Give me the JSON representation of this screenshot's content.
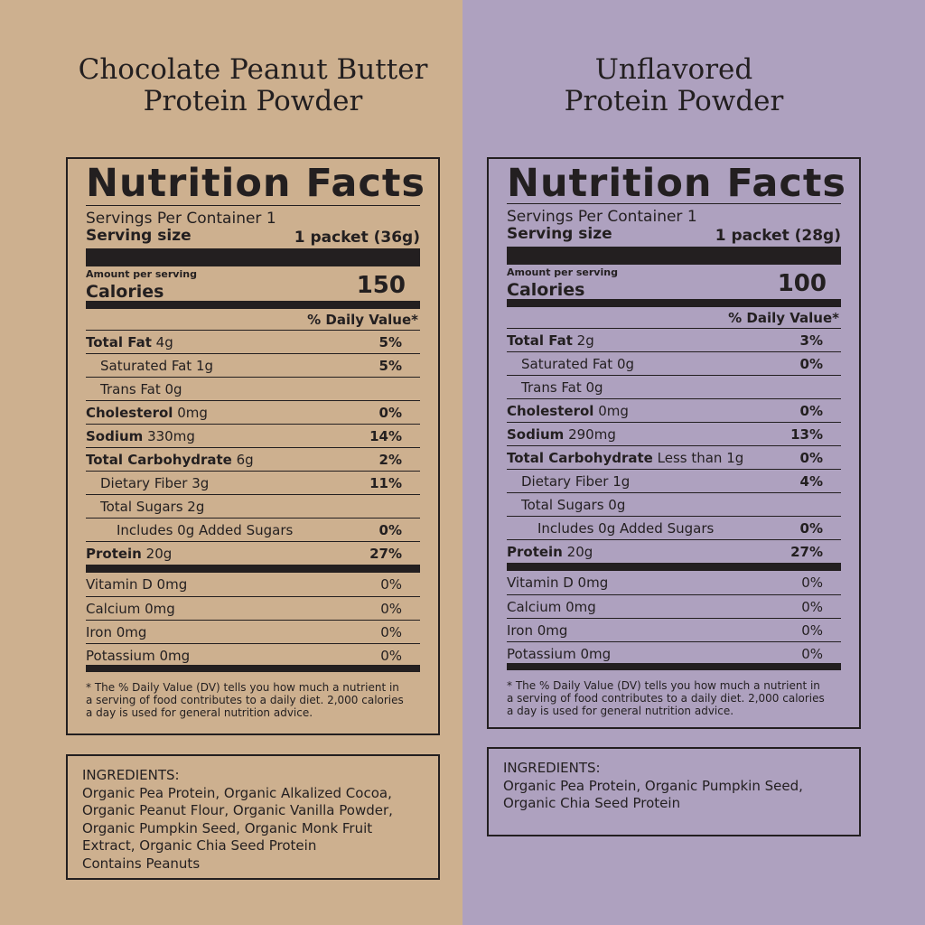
{
  "products": [
    {
      "title_lines": [
        "Chocolate Peanut Butter",
        "Protein Powder"
      ],
      "heading": "Nutrition Facts",
      "servings_per_container": "Servings Per Container 1",
      "serving_size_label": "Serving size",
      "serving_size_value": "1 packet (36g)",
      "amount_per_serving": "Amount per serving",
      "calories_label": "Calories",
      "calories_value": "150",
      "dv_header": "% Daily Value*",
      "nutrients": [
        {
          "name": "Total Fat",
          "amount": "4g",
          "dv": "5%"
        },
        {
          "name": "Saturated Fat 1g",
          "amount": "",
          "dv": "5%"
        },
        {
          "name": "Trans Fat 0g",
          "amount": "",
          "dv": ""
        },
        {
          "name": "Cholesterol",
          "amount": "0mg",
          "dv": "0%"
        },
        {
          "name": "Sodium",
          "amount": "330mg",
          "dv": "14%"
        },
        {
          "name": "Total Carbohydrate",
          "amount": "6g",
          "dv": "2%"
        },
        {
          "name": "Dietary Fiber 3g",
          "amount": "",
          "dv": "11%"
        },
        {
          "name": "Total Sugars 2g",
          "amount": "",
          "dv": ""
        },
        {
          "name": "Includes 0g Added Sugars",
          "amount": "",
          "dv": "0%"
        },
        {
          "name": "Protein",
          "amount": "20g",
          "dv": "27%"
        }
      ],
      "vitamins": [
        {
          "name": "Vitamin D 0mg",
          "dv": "0%"
        },
        {
          "name": "Calcium 0mg",
          "dv": "0%"
        },
        {
          "name": "Iron 0mg",
          "dv": "0%"
        },
        {
          "name": "Potassium 0mg",
          "dv": "0%"
        }
      ],
      "footnote_lines": [
        "* The % Daily Value (DV) tells you how much a nutrient in",
        "a serving of food contributes to a daily diet. 2,000 calories",
        "a day is used for general nutrition advice."
      ],
      "ingredients_lines": [
        "INGREDIENTS:",
        "Organic Pea Protein, Organic Alkalized Cocoa,",
        "Organic Peanut Flour, Organic Vanilla Powder,",
        "Organic Pumpkin Seed, Organic Monk Fruit",
        "Extract, Organic Chia Seed Protein",
        "Contains Peanuts"
      ]
    },
    {
      "title_lines": [
        "Unflavored",
        "Protein Powder"
      ],
      "heading": "Nutrition Facts",
      "servings_per_container": "Servings Per Container 1",
      "serving_size_label": "Serving size",
      "serving_size_value": "1 packet (28g)",
      "amount_per_serving": "Amount per serving",
      "calories_label": "Calories",
      "calories_value": "100",
      "dv_header": "% Daily Value*",
      "nutrients": [
        {
          "name": "Total Fat",
          "amount": "2g",
          "dv": "3%"
        },
        {
          "name": "Saturated Fat 0g",
          "amount": "",
          "dv": "0%"
        },
        {
          "name": "Trans Fat 0g",
          "amount": "",
          "dv": ""
        },
        {
          "name": "Cholesterol",
          "amount": "0mg",
          "dv": "0%"
        },
        {
          "name": "Sodium",
          "amount": "290mg",
          "dv": "13%"
        },
        {
          "name": "Total Carbohydrate",
          "amount": "Less than 1g",
          "dv": "0%"
        },
        {
          "name": "Dietary Fiber 1g",
          "amount": "",
          "dv": "4%"
        },
        {
          "name": "Total Sugars 0g",
          "amount": "",
          "dv": ""
        },
        {
          "name": "Includes 0g Added Sugars",
          "amount": "",
          "dv": "0%"
        },
        {
          "name": "Protein",
          "amount": "20g",
          "dv": "27%"
        }
      ],
      "vitamins": [
        {
          "name": "Vitamin D 0mg",
          "dv": "0%"
        },
        {
          "name": "Calcium 0mg",
          "dv": "0%"
        },
        {
          "name": "Iron 0mg",
          "dv": "0%"
        },
        {
          "name": "Potassium 0mg",
          "dv": "0%"
        }
      ],
      "footnote_lines": [
        "* The % Daily Value (DV) tells you how much a nutrient in",
        "a serving of food contributes to a daily diet. 2,000 calories",
        "a day is used for general nutrition advice."
      ],
      "ingredients_lines": [
        "INGREDIENTS:",
        "Organic Pea Protein, Organic Pumpkin Seed,",
        "Organic Chia Seed Protein"
      ]
    }
  ],
  "colors": {
    "left_background": "#cdb08f",
    "right_background": "#aea1bf",
    "ink": "#231f20"
  }
}
